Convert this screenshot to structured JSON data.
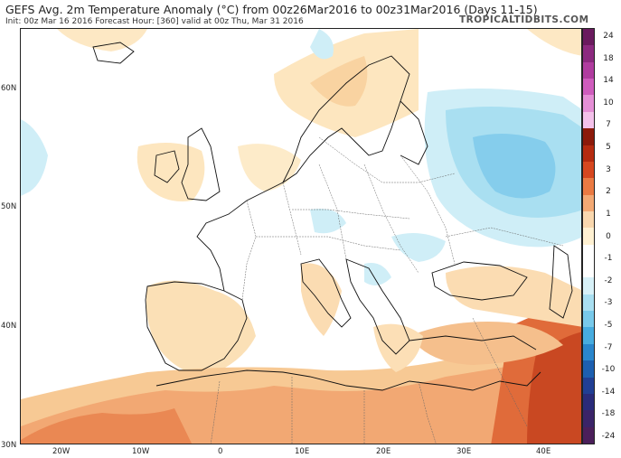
{
  "header": {
    "title": "GEFS Avg. 2m Temperature Anomaly (°C) from 00z26Mar2016 to 00z31Mar2016 (Days 11-15)",
    "subtitle": "Init: 00z Mar 16 2016   Forecast Hour: [360]   valid at 00z Thu, Mar 31 2016",
    "brand": "TROPICALTIDBITS.COM"
  },
  "map": {
    "lat_labels": [
      "60N",
      "50N",
      "40N",
      "30N"
    ],
    "lon_labels": [
      "20W",
      "10W",
      "0",
      "10E",
      "20E",
      "30E",
      "40E"
    ]
  },
  "colorbar": {
    "labels": [
      "24",
      "18",
      "14",
      "10",
      "7",
      "5",
      "3",
      "2",
      "1",
      "0",
      "-1",
      "-2",
      "-3",
      "-5",
      "-7",
      "-10",
      "-14",
      "-18",
      "-24"
    ],
    "colors": [
      "#6a1b5e",
      "#8c2a7f",
      "#b03c9f",
      "#cf5cbd",
      "#e58fd6",
      "#f3c1ea",
      "#8c1a0a",
      "#b52b10",
      "#d6471f",
      "#ea7a43",
      "#f3a974",
      "#f9d7ae",
      "#fff1d2",
      "#ffffff",
      "#ffffff",
      "#d7f1f8",
      "#a9dff1",
      "#78c9ea",
      "#47acdf",
      "#2a86cc",
      "#1d5fb0",
      "#213f94",
      "#2a2b7a",
      "#3b2468",
      "#4b1f5a"
    ]
  }
}
